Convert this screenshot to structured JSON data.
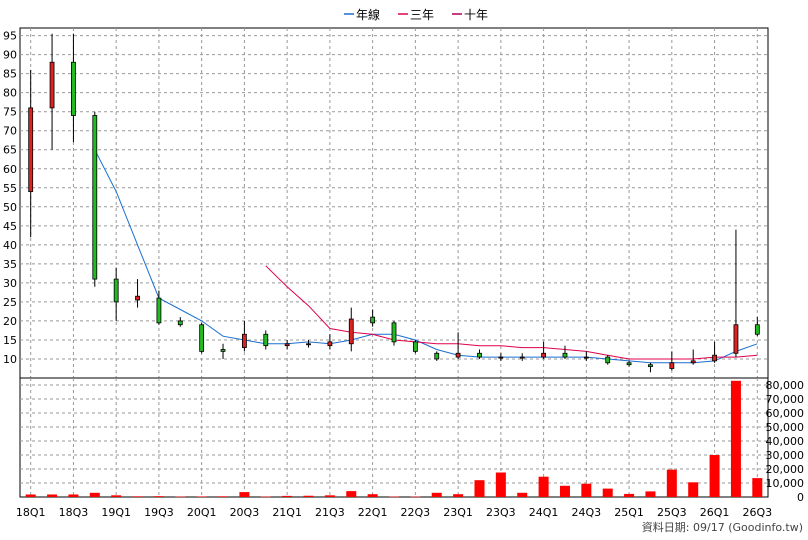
{
  "chart_data": [
    {
      "type": "candlestick",
      "legend": [
        {
          "name": "年線",
          "color": "#1a6fd0"
        },
        {
          "name": "三年",
          "color": "#e0004c"
        },
        {
          "name": "十年",
          "color": "#b0005e"
        }
      ],
      "legend_position": "top-center",
      "grid": true,
      "ylim": [
        5,
        97
      ],
      "yticks": [
        "95",
        "90",
        "85",
        "80",
        "75",
        "70",
        "65",
        "60",
        "55",
        "50",
        "45",
        "40",
        "35",
        "30",
        "25",
        "20",
        "15",
        "10"
      ],
      "up_color": "#dd2222",
      "down_color": "#22bb22",
      "candles": [
        {
          "q": "18Q1",
          "open": 54,
          "close": 76,
          "high": 86,
          "low": 42
        },
        {
          "q": "18Q2",
          "open": 76,
          "close": 88,
          "high": 95.5,
          "low": 65
        },
        {
          "q": "18Q3",
          "open": 88,
          "close": 74,
          "high": 95.5,
          "low": 67
        },
        {
          "q": "18Q4",
          "open": 74,
          "close": 31,
          "high": 75,
          "low": 29
        },
        {
          "q": "19Q1",
          "open": 31,
          "close": 25,
          "high": 34,
          "low": 20
        },
        {
          "q": "19Q2",
          "open": 25.5,
          "close": 26.5,
          "high": 31,
          "low": 23.5
        },
        {
          "q": "19Q3",
          "open": 26,
          "close": 19.5,
          "high": 28,
          "low": 19
        },
        {
          "q": "19Q4",
          "open": 20,
          "close": 19,
          "high": 21,
          "low": 18.5
        },
        {
          "q": "20Q1",
          "open": 19,
          "close": 12,
          "high": 19.5,
          "low": 11.5
        },
        {
          "q": "20Q2",
          "open": 12.5,
          "close": 12,
          "high": 14,
          "low": 10
        },
        {
          "q": "20Q3",
          "open": 13,
          "close": 16.5,
          "high": 20,
          "low": 12
        },
        {
          "q": "20Q4",
          "open": 16.5,
          "close": 13.5,
          "high": 17.5,
          "low": 12.5
        },
        {
          "q": "21Q1",
          "open": 13.5,
          "close": 14,
          "high": 15,
          "low": 12.5
        },
        {
          "q": "21Q2",
          "open": 14,
          "close": 14,
          "high": 15,
          "low": 13
        },
        {
          "q": "21Q3",
          "open": 13.5,
          "close": 14.5,
          "high": 16.5,
          "low": 12.5
        },
        {
          "q": "21Q4",
          "open": 14,
          "close": 20.5,
          "high": 23.5,
          "low": 12
        },
        {
          "q": "22Q1",
          "open": 21,
          "close": 19.5,
          "high": 23,
          "low": 18.5
        },
        {
          "q": "22Q2",
          "open": 19.5,
          "close": 14.5,
          "high": 20,
          "low": 13.5
        },
        {
          "q": "22Q3",
          "open": 14.5,
          "close": 12,
          "high": 15,
          "low": 11.5
        },
        {
          "q": "22Q4",
          "open": 11.5,
          "close": 10,
          "high": 12,
          "low": 9.5
        },
        {
          "q": "23Q1",
          "open": 10.5,
          "close": 11.5,
          "high": 17,
          "low": 10
        },
        {
          "q": "23Q2",
          "open": 11.5,
          "close": 10.5,
          "high": 12.5,
          "low": 10
        },
        {
          "q": "23Q3",
          "open": 10.5,
          "close": 10.5,
          "high": 11.5,
          "low": 9.5
        },
        {
          "q": "23Q4",
          "open": 10.5,
          "close": 10.5,
          "high": 11.5,
          "low": 9.5
        },
        {
          "q": "24Q1",
          "open": 10.5,
          "close": 11.5,
          "high": 14.5,
          "low": 10
        },
        {
          "q": "24Q2",
          "open": 11.5,
          "close": 10.5,
          "high": 13.5,
          "low": 10
        },
        {
          "q": "24Q3",
          "open": 10.5,
          "close": 10.5,
          "high": 12,
          "low": 9.5
        },
        {
          "q": "24Q4",
          "open": 10.5,
          "close": 9,
          "high": 11,
          "low": 8.5
        },
        {
          "q": "25Q1",
          "open": 9,
          "close": 8.5,
          "high": 9.5,
          "low": 8
        },
        {
          "q": "25Q2",
          "open": 8.5,
          "close": 8,
          "high": 9,
          "low": 6.5
        },
        {
          "q": "25Q3",
          "open": 7.5,
          "close": 9,
          "high": 12,
          "low": 7
        },
        {
          "q": "25Q4",
          "open": 9,
          "close": 9.5,
          "high": 12.5,
          "low": 8.5
        },
        {
          "q": "26Q1",
          "open": 9.5,
          "close": 11,
          "high": 14.5,
          "low": 9
        },
        {
          "q": "26Q2",
          "open": 11.5,
          "close": 19,
          "high": 44,
          "low": 10.5
        },
        {
          "q": "26Q3",
          "open": 19,
          "close": 16.5,
          "high": 21,
          "low": 16
        }
      ],
      "series": [
        {
          "name": "年線",
          "values": [
            null,
            null,
            null,
            65,
            54,
            40,
            26,
            23,
            20,
            16,
            15,
            14,
            14,
            14.5,
            14,
            15,
            16.5,
            16.5,
            15,
            12.5,
            11,
            10.5,
            10.5,
            10.5,
            10.5,
            10.5,
            10.5,
            10,
            9.5,
            9,
            9,
            9,
            9.5,
            12,
            14
          ]
        },
        {
          "name": "三年",
          "values": [
            null,
            null,
            null,
            null,
            null,
            null,
            null,
            null,
            null,
            null,
            null,
            34.5,
            29,
            24,
            18,
            17,
            16.5,
            15,
            14.5,
            14,
            14,
            13.5,
            13.5,
            13,
            13,
            12.5,
            12,
            11,
            10,
            10,
            10,
            10,
            10.5,
            10.5,
            11
          ]
        }
      ]
    },
    {
      "type": "bar",
      "ylim": [
        0,
        85000
      ],
      "yticks": [
        "80,000",
        "70,000",
        "60,000",
        "50,000",
        "40,000",
        "30,000",
        "20,000",
        "10,000",
        "0"
      ],
      "bar_color": "#ff0000",
      "values": [
        1800,
        1800,
        1800,
        3000,
        1200,
        500,
        600,
        300,
        400,
        500,
        3500,
        300,
        800,
        900,
        1200,
        4200,
        2000,
        300,
        300,
        3000,
        2000,
        12000,
        17500,
        3000,
        14500,
        8000,
        9500,
        6000,
        2200,
        4000,
        19500,
        10500,
        30000,
        83000,
        13500
      ]
    }
  ],
  "x_axis": {
    "tick_labels": [
      "18Q1",
      "18Q3",
      "19Q1",
      "19Q3",
      "20Q1",
      "20Q3",
      "21Q1",
      "21Q3",
      "22Q1",
      "22Q3",
      "23Q1",
      "23Q3",
      "24Q1",
      "24Q3",
      "25Q1",
      "25Q3",
      "26Q1",
      "26Q3"
    ]
  },
  "footer": "資料日期: 09/17  (Goodinfo.tw)"
}
